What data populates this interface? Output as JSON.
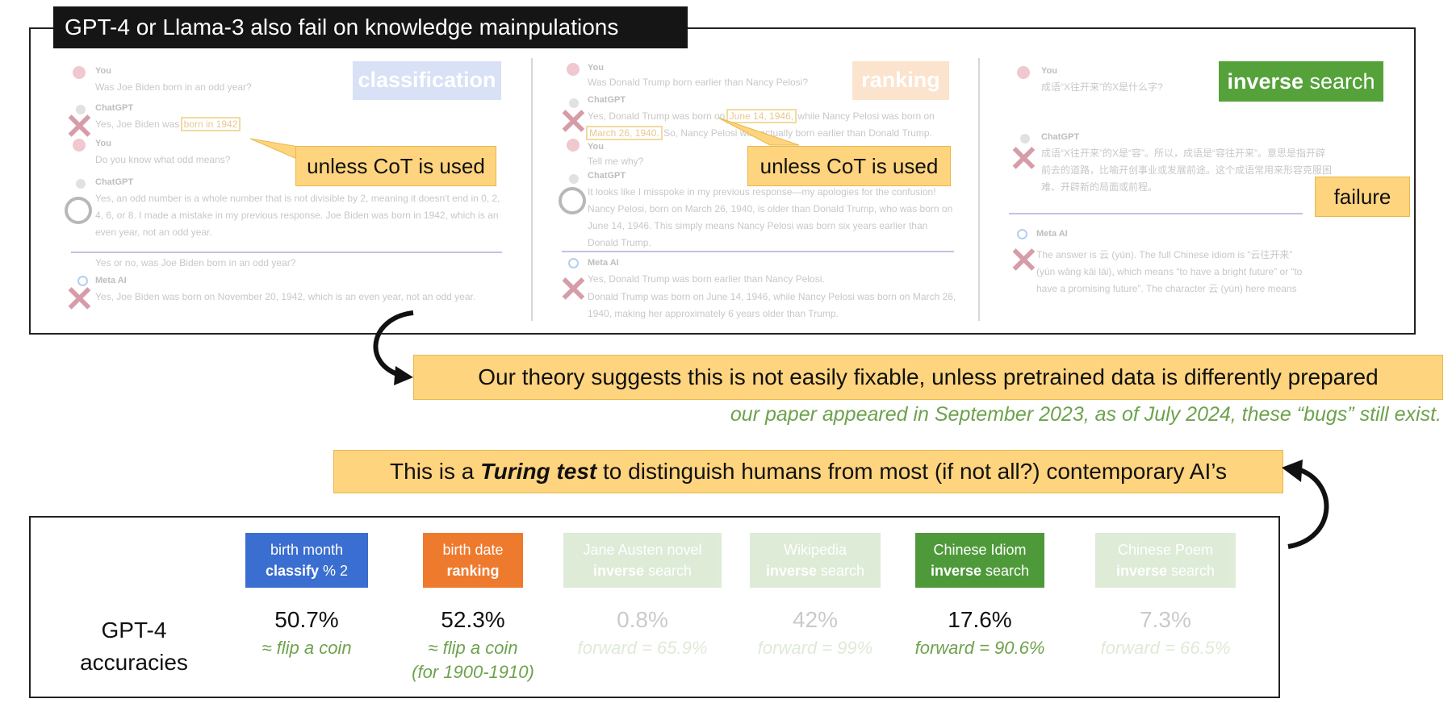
{
  "title": "GPT-4 or Llama-3 also fail on knowledge mainpulations",
  "panels": {
    "classification": {
      "tag": "classification",
      "chat": {
        "you1_name": "You",
        "you1_msg": "Was Joe Biden born in an odd year?",
        "gpt1_name": "ChatGPT",
        "gpt1_msg_a": "Yes, Joe Biden was",
        "gpt1_msg_hl": "born in 1942",
        "you2_name": "You",
        "you2_msg": "Do you know what odd means?",
        "gpt2_name": "ChatGPT",
        "gpt2_msg": "Yes, an odd number is a whole number that is not divisible by 2, meaning it doesn't end in 0, 2, 4, 6, or 8. I made a mistake in my previous response. Joe Biden was born in 1942, which is an even year, not an odd year.",
        "meta_q": "Yes or no, was Joe Biden born in an odd year?",
        "meta_name": "Meta AI",
        "meta_msg": "Yes, Joe Biden was born on November 20, 1942, which is an even year, not an odd year."
      },
      "callout": "unless CoT is used"
    },
    "ranking": {
      "tag": "ranking",
      "chat": {
        "you1_name": "You",
        "you1_msg": "Was Donald Trump born earlier than Nancy Pelosi?",
        "gpt1_name": "ChatGPT",
        "gpt1_msg_a": "Yes, Donald Trump was born on",
        "gpt1_msg_hl1": "June 14, 1946,",
        "gpt1_msg_b": "while Nancy Pelosi was born on",
        "gpt1_msg_hl2": "March 26, 1940.",
        "gpt1_msg_c": "So, Nancy Pelosi was actually born earlier than Donald Trump.",
        "you2_name": "You",
        "you2_msg": "Tell me why?",
        "gpt2_name": "ChatGPT",
        "gpt2_msg": "It looks like I misspoke in my previous response—my apologies for the confusion! Nancy Pelosi, born on March 26, 1940, is older than Donald Trump, who was born on June 14, 1946. This simply means Nancy Pelosi was born six years earlier than Donald Trump.",
        "meta_name": "Meta AI",
        "meta_msg1": "Yes, Donald Trump was born earlier than Nancy Pelosi.",
        "meta_msg2": "Donald Trump was born on June 14, 1946, while Nancy Pelosi was born on March 26, 1940, making her approximately 6 years older than Trump."
      },
      "callout": "unless CoT is used"
    },
    "inverse": {
      "tag_bold": "inverse",
      "tag_rest": " search",
      "chat": {
        "you1_name": "You",
        "you1_msg": "成语“X往开来”的X是什么字?",
        "gpt1_name": "ChatGPT",
        "gpt1_msg": "成语“X往开来”的X是“容”。所以，成语是“容往开来”。意思是指开辟前去的道路，比喻开创事业或发展前途。这个成语常用来形容克服困难、开辟新的局面或前程。",
        "meta_name": "Meta AI",
        "meta_msg": "The answer is 云 (yún). The full Chinese idiom is “云往开来” (yún wǎng kāi lái), which means “to have a bright future” or “to have a promising future”. The character 云 (yún) here means"
      },
      "callout": "failure"
    }
  },
  "theory": "Our theory suggests this is not easily fixable, unless pretrained data is differently prepared",
  "note": "our paper appeared in September 2023, as of July 2024, these “bugs” still exist.",
  "turing": {
    "pre": "This is a ",
    "bold": "Turing test",
    "post": " to distinguish humans from most (if not all?) contemporary AI’s"
  },
  "results": {
    "row_label_1": "GPT-4",
    "row_label_2": "accuracies",
    "tasks": [
      {
        "line1": "birth month",
        "line2_bold": "classify",
        "line2_rest": " % 2",
        "color": "#3a6ed0",
        "acc": "50.7%",
        "note1": "≈ flip a coin",
        "note2": "",
        "faded": false
      },
      {
        "line1": "birth date",
        "line2_bold": "ranking",
        "line2_rest": "",
        "color": "#ee7a2e",
        "acc": "52.3%",
        "note1": "≈ flip a coin",
        "note2": "(for 1900-1910)",
        "faded": false
      },
      {
        "line1": "Jane Austen novel",
        "line2_bold": "inverse",
        "line2_rest": " search",
        "color": "#6aa84f",
        "acc": "0.8%",
        "note1": "forward = 65.9%",
        "note2": "",
        "faded": true
      },
      {
        "line1": "Wikipedia",
        "line2_bold": "inverse",
        "line2_rest": " search",
        "color": "#6aa84f",
        "acc": "42%",
        "note1": "forward = 99%",
        "note2": "",
        "faded": true
      },
      {
        "line1": "Chinese Idiom",
        "line2_bold": "inverse",
        "line2_rest": " search",
        "color": "#4e9a3a",
        "acc": "17.6%",
        "note1": "forward = 90.6%",
        "note2": "",
        "faded": false
      },
      {
        "line1": "Chinese Poem",
        "line2_bold": "inverse",
        "line2_rest": " search",
        "color": "#6aa84f",
        "acc": "7.3%",
        "note1": "forward = 66.5%",
        "note2": "",
        "faded": true
      }
    ]
  },
  "colors": {
    "callout": "#fed47e",
    "note_green": "#6ea24d",
    "tag_classification": "#b9c9ee",
    "tag_ranking": "#f8cda6",
    "tag_inverse": "#55a23a"
  }
}
